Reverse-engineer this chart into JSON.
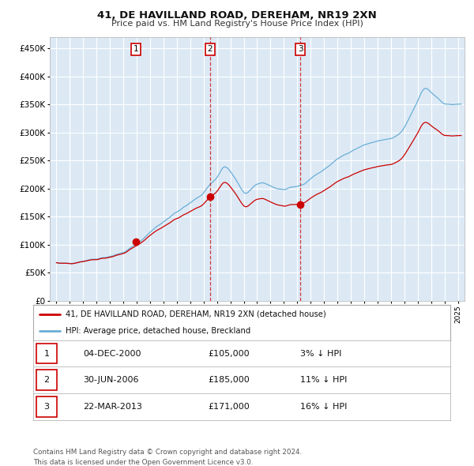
{
  "title": "41, DE HAVILLAND ROAD, DEREHAM, NR19 2XN",
  "subtitle": "Price paid vs. HM Land Registry's House Price Index (HPI)",
  "bg_color": "#dce9f5",
  "hpi_color": "#6aaed6",
  "price_color": "#cc0000",
  "grid_color": "#ffffff",
  "purchases": [
    {
      "date_num": 2000.92,
      "price": 105000,
      "label": "1"
    },
    {
      "date_num": 2006.49,
      "price": 185000,
      "label": "2"
    },
    {
      "date_num": 2013.22,
      "price": 171000,
      "label": "3"
    }
  ],
  "vline_dates": [
    2006.49,
    2013.22
  ],
  "ylim": [
    0,
    470000
  ],
  "xlim": [
    1994.5,
    2025.5
  ],
  "yticks": [
    0,
    50000,
    100000,
    150000,
    200000,
    250000,
    300000,
    350000,
    400000,
    450000
  ],
  "ytick_labels": [
    "£0",
    "£50K",
    "£100K",
    "£150K",
    "£200K",
    "£250K",
    "£300K",
    "£350K",
    "£400K",
    "£450K"
  ],
  "xticks": [
    1995,
    1996,
    1997,
    1998,
    1999,
    2000,
    2001,
    2002,
    2003,
    2004,
    2005,
    2006,
    2007,
    2008,
    2009,
    2010,
    2011,
    2012,
    2013,
    2014,
    2015,
    2016,
    2017,
    2018,
    2019,
    2020,
    2021,
    2022,
    2023,
    2024,
    2025
  ],
  "legend_items": [
    {
      "label": "41, DE HAVILLAND ROAD, DEREHAM, NR19 2XN (detached house)",
      "color": "#cc0000"
    },
    {
      "label": "HPI: Average price, detached house, Breckland",
      "color": "#6aaed6"
    }
  ],
  "table_rows": [
    {
      "num": "1",
      "date": "04-DEC-2000",
      "price": "£105,000",
      "hpi": "3% ↓ HPI"
    },
    {
      "num": "2",
      "date": "30-JUN-2006",
      "price": "£185,000",
      "hpi": "11% ↓ HPI"
    },
    {
      "num": "3",
      "date": "22-MAR-2013",
      "price": "£171,000",
      "hpi": "16% ↓ HPI"
    }
  ],
  "footer": [
    "Contains HM Land Registry data © Crown copyright and database right 2024.",
    "This data is licensed under the Open Government Licence v3.0."
  ]
}
